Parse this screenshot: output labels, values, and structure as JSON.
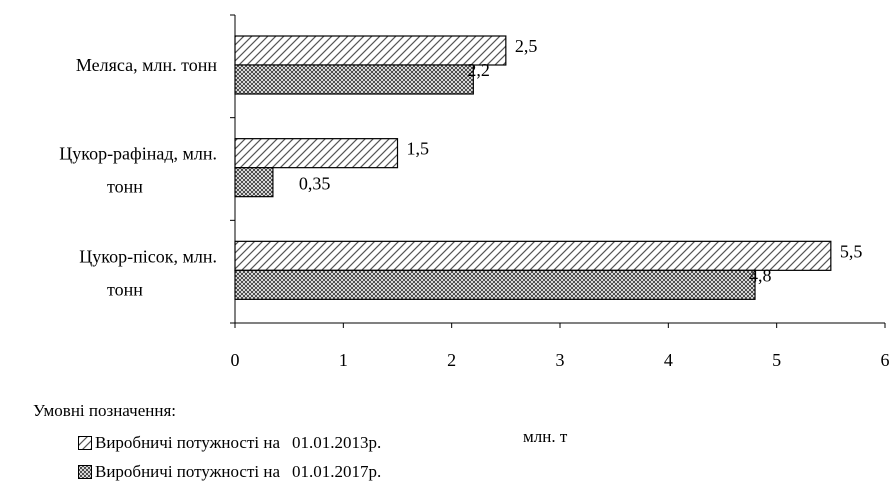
{
  "chart_data": {
    "type": "bar",
    "orientation": "horizontal",
    "categories": [
      [
        "Меляса, млн. тонн"
      ],
      [
        "Цукор-рафінад, млн.",
        "тонн"
      ],
      [
        "Цукор-пісок, млн.",
        "тонн"
      ]
    ],
    "series": [
      {
        "name": "Виробничі потужності на 01.01.2013р.",
        "values": [
          2.5,
          1.5,
          5.5
        ],
        "labels": [
          "2,5",
          "1,5",
          "5,5"
        ],
        "pattern": "diagonal-hatch"
      },
      {
        "name": "Виробничі потужності на 01.01.2017р.",
        "values": [
          2.2,
          0.35,
          4.8
        ],
        "labels": [
          "2,2",
          "0,35",
          "4,8"
        ],
        "pattern": "crosshatch"
      }
    ],
    "xlim": [
      0,
      6
    ],
    "xticks": [
      "0",
      "1",
      "2",
      "3",
      "4",
      "5",
      "6"
    ],
    "xlabel": "млн. т",
    "grid": false
  },
  "legend": {
    "title": "Умовні позначення:",
    "items": [
      {
        "label": "Виробничі потужності на",
        "date": "01.01.2013р."
      },
      {
        "label": "Виробничі потужності на",
        "date": "01.01.2017р."
      }
    ]
  }
}
